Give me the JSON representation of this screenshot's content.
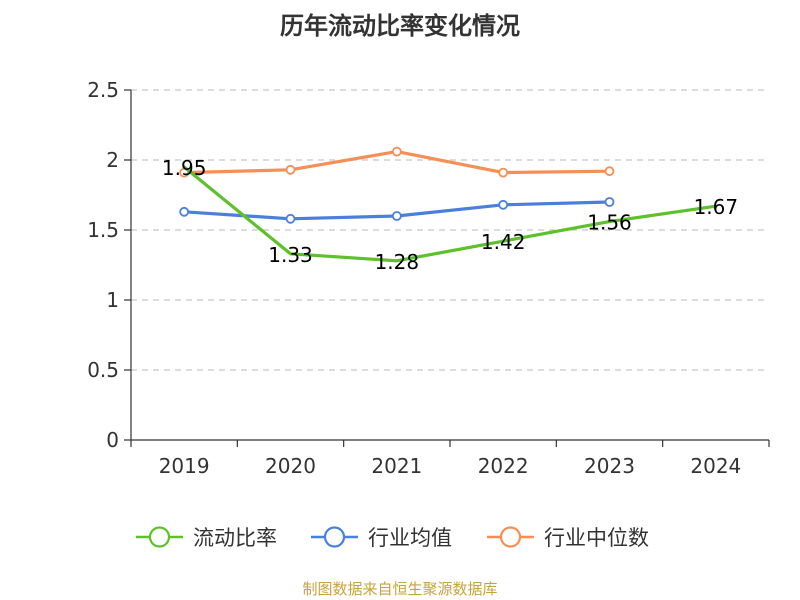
{
  "chart_data": {
    "type": "line",
    "title": "历年流动比率变化情况",
    "categories": [
      "2019",
      "2020",
      "2021",
      "2022",
      "2023",
      "2024"
    ],
    "y_ticks": [
      "0",
      "0.5",
      "1",
      "1.5",
      "2",
      "2.5"
    ],
    "ylim": [
      0,
      2.5
    ],
    "grid": true,
    "legend_position": "bottom",
    "series": [
      {
        "name": "流动比率",
        "color": "#5dc12b",
        "values": [
          1.95,
          1.33,
          1.28,
          1.42,
          1.56,
          1.67
        ],
        "labels": [
          "1.95",
          "1.33",
          "1.28",
          "1.42",
          "1.56",
          "1.67"
        ]
      },
      {
        "name": "行业均值",
        "color": "#4a7fdc",
        "values": [
          1.63,
          1.58,
          1.6,
          1.68,
          1.7,
          null
        ]
      },
      {
        "name": "行业中位数",
        "color": "#f78e55",
        "values": [
          1.91,
          1.93,
          2.06,
          1.91,
          1.92,
          null
        ]
      }
    ]
  },
  "source": "制图数据来自恒生聚源数据库"
}
